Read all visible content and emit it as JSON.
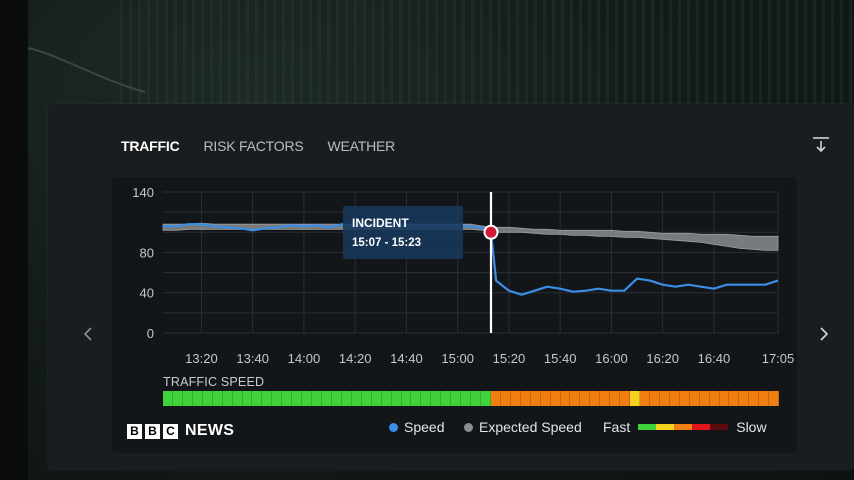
{
  "tabs": [
    {
      "label": "TRAFFIC",
      "active": true
    },
    {
      "label": "RISK FACTORS",
      "active": false
    },
    {
      "label": "WEATHER",
      "active": false
    }
  ],
  "icons": {
    "download": "download-icon",
    "prev": "chevron-left-icon",
    "next": "chevron-right-icon"
  },
  "chart_data": {
    "type": "line",
    "x": [
      "13:05",
      "13:10",
      "13:15",
      "13:20",
      "13:25",
      "13:30",
      "13:35",
      "13:40",
      "13:45",
      "13:50",
      "13:55",
      "14:00",
      "14:05",
      "14:10",
      "14:15",
      "14:20",
      "14:25",
      "14:30",
      "14:35",
      "14:40",
      "14:45",
      "14:50",
      "14:55",
      "15:00",
      "15:05",
      "15:10",
      "15:13",
      "15:15",
      "15:20",
      "15:25",
      "15:30",
      "15:35",
      "15:40",
      "15:45",
      "15:50",
      "15:55",
      "16:00",
      "16:05",
      "16:10",
      "16:15",
      "16:20",
      "16:25",
      "16:30",
      "16:35",
      "16:40",
      "16:45",
      "16:50",
      "16:55",
      "17:00",
      "17:05"
    ],
    "xticks": [
      "13:20",
      "13:40",
      "14:00",
      "14:20",
      "14:40",
      "15:00",
      "15:20",
      "15:40",
      "16:00",
      "16:20",
      "16:40",
      "17:05"
    ],
    "yticks": [
      0,
      40,
      80,
      140
    ],
    "ylim": [
      0,
      140
    ],
    "series": [
      {
        "name": "Speed",
        "color": "#3b8ee8",
        "values": [
          106,
          106,
          108,
          108,
          106,
          105,
          104,
          102,
          104,
          105,
          107,
          106,
          107,
          105,
          108,
          106,
          107,
          106,
          108,
          107,
          106,
          106,
          106,
          106,
          106,
          104,
          100,
          52,
          42,
          38,
          42,
          46,
          44,
          41,
          42,
          44,
          42,
          42,
          54,
          52,
          48,
          46,
          48,
          46,
          44,
          48,
          48,
          48,
          48,
          52
        ]
      },
      {
        "name": "Expected Speed",
        "color": "#8a8d90",
        "upper": [
          108,
          108,
          108,
          109,
          108,
          108,
          108,
          108,
          108,
          108,
          108,
          108,
          108,
          108,
          108,
          108,
          108,
          108,
          108,
          108,
          108,
          108,
          108,
          108,
          108,
          106,
          105,
          105,
          105,
          104,
          103,
          103,
          102,
          102,
          102,
          102,
          102,
          101,
          101,
          100,
          99,
          99,
          99,
          98,
          98,
          98,
          97,
          96,
          96,
          96
        ],
        "lower": [
          102,
          102,
          103,
          103,
          103,
          103,
          103,
          103,
          103,
          103,
          103,
          103,
          103,
          103,
          103,
          103,
          103,
          103,
          103,
          103,
          103,
          103,
          103,
          103,
          103,
          102,
          101,
          100,
          100,
          100,
          99,
          98,
          98,
          97,
          97,
          96,
          96,
          95,
          95,
          94,
          93,
          92,
          91,
          90,
          88,
          86,
          84,
          83,
          82,
          82
        ]
      }
    ],
    "incident": {
      "label": "INCIDENT",
      "time_range": "15:07 - 15:23",
      "x": "15:13",
      "y": 100
    }
  },
  "traffic_speed": {
    "title": "TRAFFIC SPEED",
    "segments": [
      "green",
      "green",
      "green",
      "green",
      "green",
      "green",
      "green",
      "green",
      "green",
      "green",
      "green",
      "green",
      "green",
      "green",
      "green",
      "green",
      "green",
      "green",
      "green",
      "green",
      "green",
      "green",
      "green",
      "green",
      "green",
      "green",
      "green",
      "green",
      "green",
      "green",
      "green",
      "green",
      "green",
      "orange",
      "orange",
      "orange",
      "orange",
      "orange",
      "orange",
      "orange",
      "orange",
      "orange",
      "orange",
      "orange",
      "orange",
      "orange",
      "orange",
      "yellow",
      "orange",
      "orange",
      "orange",
      "orange",
      "orange",
      "orange",
      "orange",
      "orange",
      "orange",
      "orange",
      "orange",
      "orange",
      "orange",
      "orange"
    ],
    "colors": {
      "green": "#3fd23b",
      "orange": "#f17e10",
      "yellow": "#f6d21c"
    }
  },
  "brand": {
    "letters": [
      "B",
      "B",
      "C"
    ],
    "word": "NEWS"
  },
  "legend": {
    "speed": "Speed",
    "expected": "Expected Speed",
    "fast": "Fast",
    "slow": "Slow",
    "scale_colors": [
      "#3fd23b",
      "#f6d21c",
      "#f17e10",
      "#e0141c",
      "#5a0a0e"
    ]
  }
}
